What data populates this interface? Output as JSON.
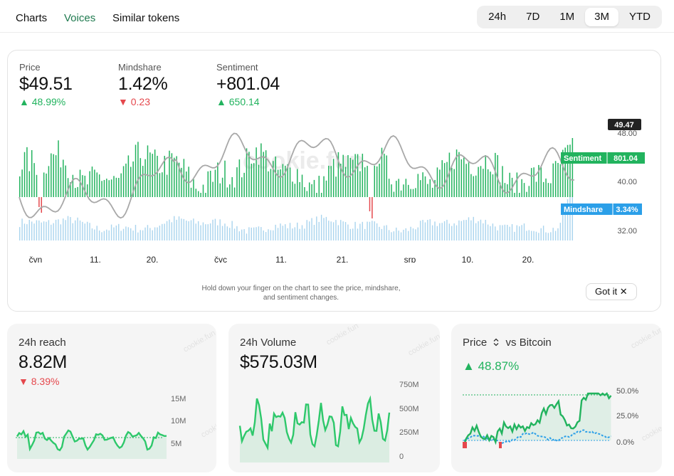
{
  "nav": {
    "tabs": [
      {
        "label": "Charts",
        "active": false
      },
      {
        "label": "Voices",
        "active": true
      },
      {
        "label": "Similar tokens",
        "active": false
      }
    ],
    "ranges": [
      {
        "label": "24h",
        "active": false
      },
      {
        "label": "7D",
        "active": false
      },
      {
        "label": "1M",
        "active": false
      },
      {
        "label": "3M",
        "active": true
      },
      {
        "label": "YTD",
        "active": false
      }
    ]
  },
  "metrics": {
    "price": {
      "label": "Price",
      "value": "$49.51",
      "change": "48.99%",
      "direction": "up"
    },
    "mindshare": {
      "label": "Mindshare",
      "value": "1.42%",
      "change": "0.23",
      "direction": "down"
    },
    "sentiment": {
      "label": "Sentiment",
      "value": "+801.04",
      "change": "650.14",
      "direction": "up"
    }
  },
  "main_chart": {
    "price_marker": "49.47",
    "y_ticks": [
      "48.00",
      "40.00",
      "32.00"
    ],
    "x_ticks": [
      "čvn",
      "11.",
      "20.",
      "čvc",
      "11.",
      "21.",
      "srp",
      "10.",
      "20."
    ],
    "sentiment_tag": {
      "label": "Sentiment",
      "value": "801.04"
    },
    "mindshare_tag": {
      "label": "Mindshare",
      "value": "3.34%"
    },
    "watermark": "cookie.fun",
    "colors": {
      "price": "#a8a8a8",
      "sentiment_pos": "#22b35e",
      "sentiment_neg": "#e5484d",
      "mindshare": "#a9d4ee",
      "tag_green": "#22b35e",
      "tag_blue": "#2b9fe8"
    }
  },
  "hint": {
    "line1": "Hold down your finger on the chart to see the price, mindshare,",
    "line2": "and sentiment changes."
  },
  "gotit_label": "Got it",
  "cards": {
    "reach": {
      "title": "24h reach",
      "value": "8.82M",
      "change": "8.39%",
      "direction": "down",
      "y_ticks": [
        "15M",
        "10M",
        "5M"
      ]
    },
    "volume": {
      "title": "24h Volume",
      "value": "$575.03M",
      "y_ticks": [
        "750M",
        "500M",
        "250M",
        "0"
      ]
    },
    "price_vs": {
      "title": "Price",
      "title_suffix": "vs Bitcoin",
      "change": "48.87%",
      "direction": "up",
      "y_ticks": [
        "50.0%",
        "25.0%",
        "0.0%"
      ]
    }
  },
  "card_watermark": "cookie.fun"
}
